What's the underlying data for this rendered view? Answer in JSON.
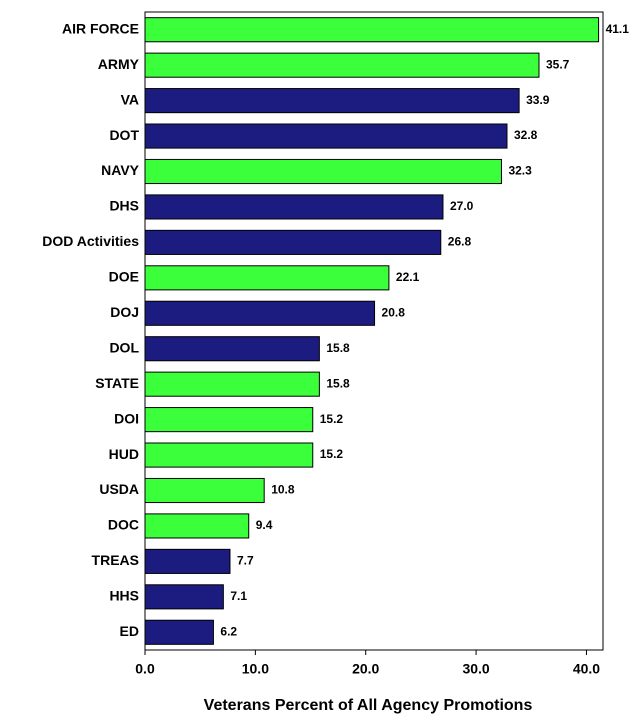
{
  "chart_data": {
    "type": "barh",
    "x_label": "Veterans Percent of All Agency Promotions",
    "categories": [
      "AIR FORCE",
      "ARMY",
      "VA",
      "DOT",
      "NAVY",
      "DHS",
      "DOD Activities",
      "DOE",
      "DOJ",
      "DOL",
      "STATE",
      "DOI",
      "HUD",
      "USDA",
      "DOC",
      "TREAS",
      "HHS",
      "ED"
    ],
    "values": [
      41.1,
      35.7,
      33.9,
      32.8,
      32.3,
      27,
      26.8,
      22.1,
      20.8,
      15.8,
      15.8,
      15.2,
      15.2,
      10.8,
      9.4,
      7.7,
      7.1,
      6.2
    ],
    "value_labels": [
      "41.1",
      "35.7",
      "33.9",
      "32.8",
      "32.3",
      "27.0",
      "26.8",
      "22.1",
      "20.8",
      "15.8",
      "15.8",
      "15.2",
      "15.2",
      "10.8",
      "9.4",
      "7.7",
      "7.1",
      "6.2"
    ],
    "colors": [
      "#3cff3c",
      "#3cff3c",
      "#1c1c80",
      "#1c1c80",
      "#3cff3c",
      "#1c1c80",
      "#1c1c80",
      "#3cff3c",
      "#1c1c80",
      "#1c1c80",
      "#3cff3c",
      "#3cff3c",
      "#3cff3c",
      "#3cff3c",
      "#3cff3c",
      "#1c1c80",
      "#1c1c80",
      "#1c1c80"
    ],
    "xlim": [
      0,
      41.5
    ],
    "xticks": [
      {
        "value": 0,
        "label": "0.0"
      },
      {
        "value": 10,
        "label": "10.0"
      },
      {
        "value": 20,
        "label": "20.0"
      },
      {
        "value": 30,
        "label": "30.0"
      },
      {
        "value": 40,
        "label": "40.0"
      }
    ],
    "grid": false
  }
}
